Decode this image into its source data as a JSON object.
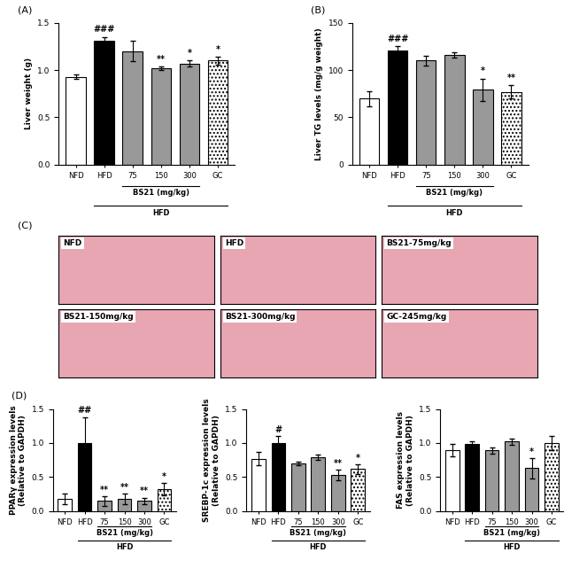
{
  "chart_data": [
    {
      "type": "bar",
      "title": "(A)",
      "y_label": "Liver weight (g)",
      "categories": [
        "NFD",
        "HFD",
        "75",
        "150",
        "300",
        "GC"
      ],
      "values": [
        0.93,
        1.31,
        1.2,
        1.02,
        1.07,
        1.1
      ],
      "errors": [
        0.02,
        0.04,
        0.11,
        0.02,
        0.03,
        0.04
      ],
      "significance": [
        null,
        "###",
        null,
        "**",
        "*",
        "*"
      ],
      "colors": [
        "#ffffff",
        "#000000",
        "#999999",
        "#999999",
        "#999999",
        "#ffffff"
      ],
      "annotations": [
        "BS21 (mg/kg)",
        "HFD"
      ],
      "ylim": [
        0,
        1.5
      ],
      "yticks": [
        {
          "value": 0,
          "label": "0.0"
        },
        {
          "value": 0.5,
          "label": "0.5"
        },
        {
          "value": 1.0,
          "label": "1.0"
        },
        {
          "value": 1.5,
          "label": "1.5"
        }
      ]
    },
    {
      "type": "bar",
      "title": "(B)",
      "y_label": "Liver TG levels (mg/g weight)",
      "categories": [
        "NFD",
        "HFD",
        "75",
        "150",
        "300",
        "GC"
      ],
      "values": [
        70,
        121,
        110,
        116,
        79,
        77
      ],
      "errors": [
        8,
        4,
        5,
        3,
        12,
        7
      ],
      "significance": [
        null,
        "###",
        null,
        null,
        "*",
        "**"
      ],
      "colors": [
        "#ffffff",
        "#000000",
        "#999999",
        "#999999",
        "#999999",
        "#ffffff"
      ],
      "annotations": [
        "BS21 (mg/kg)",
        "HFD"
      ],
      "ylim": [
        0,
        150
      ],
      "yticks": [
        0,
        50,
        100,
        150
      ]
    },
    {
      "type": "bar",
      "title": "(D)",
      "y_label": "PPARγ expression levels\n(Relative to GAPDH)",
      "categories": [
        "NFD",
        "HFD",
        "75",
        "150",
        "300",
        "GC"
      ],
      "values": [
        0.18,
        1.0,
        0.15,
        0.18,
        0.15,
        0.32
      ],
      "errors": [
        0.08,
        0.38,
        0.07,
        0.08,
        0.05,
        0.09
      ],
      "significance": [
        null,
        "##",
        "**",
        "**",
        "**",
        "*"
      ],
      "colors": [
        "#ffffff",
        "#000000",
        "#999999",
        "#999999",
        "#999999",
        "#ffffff"
      ],
      "annotations": [
        "BS21 (mg/kg)",
        "HFD"
      ],
      "ylim": [
        0,
        1.5
      ],
      "yticks": [
        {
          "value": 0,
          "label": "0.0"
        },
        {
          "value": 0.5,
          "label": "0.5"
        },
        {
          "value": 1.0,
          "label": "1.0"
        },
        {
          "value": 1.5,
          "label": "1.5"
        }
      ]
    },
    {
      "type": "bar",
      "y_label": "SREBP-1c expression levels\n(Relative to GAPDH)",
      "categories": [
        "NFD",
        "HFD",
        "75",
        "150",
        "300",
        "GC"
      ],
      "values": [
        0.77,
        1.0,
        0.7,
        0.79,
        0.53,
        0.62
      ],
      "errors": [
        0.1,
        0.1,
        0.03,
        0.04,
        0.08,
        0.07
      ],
      "significance": [
        null,
        "#",
        null,
        null,
        "**",
        "*"
      ],
      "colors": [
        "#ffffff",
        "#000000",
        "#999999",
        "#999999",
        "#999999",
        "#ffffff"
      ],
      "annotations": [
        "BS21 (mg/kg)",
        "HFD"
      ],
      "ylim": [
        0,
        1.5
      ],
      "yticks": [
        {
          "value": 0,
          "label": "0.0"
        },
        {
          "value": 0.5,
          "label": "0.5"
        },
        {
          "value": 1.0,
          "label": "1.0"
        },
        {
          "value": 1.5,
          "label": "1.5"
        }
      ]
    },
    {
      "type": "bar",
      "y_label": "FAS expression levels\n(Relative to GAPDH)",
      "categories": [
        "NFD",
        "HFD",
        "75",
        "150",
        "300",
        "GC"
      ],
      "values": [
        0.9,
        0.99,
        0.89,
        1.02,
        0.63,
        1.0
      ],
      "errors": [
        0.09,
        0.04,
        0.04,
        0.04,
        0.15,
        0.1
      ],
      "significance": [
        null,
        null,
        null,
        null,
        "*",
        null
      ],
      "colors": [
        "#ffffff",
        "#000000",
        "#999999",
        "#999999",
        "#999999",
        "#ffffff"
      ],
      "annotations": [
        "BS21 (mg/kg)",
        "HFD"
      ],
      "ylim": [
        0,
        1.5
      ],
      "yticks": [
        {
          "value": 0,
          "label": "0.0"
        },
        {
          "value": 0.5,
          "label": "0.5"
        },
        {
          "value": 1.0,
          "label": "1.0"
        },
        {
          "value": 1.5,
          "label": "1.5"
        }
      ]
    }
  ],
  "micrographs": {
    "title": "(C)",
    "panels": [
      "NFD",
      "HFD",
      "BS21-75mg/kg",
      "BS21-150mg/kg",
      "BS21-300mg/kg",
      "GC-245mg/kg"
    ]
  }
}
